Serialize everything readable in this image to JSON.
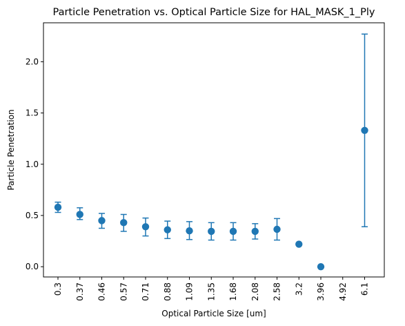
{
  "chart_data": {
    "type": "scatter",
    "title": "Particle Penetration vs. Optical Particle Size for HAL_MASK_1_Ply",
    "xlabel": "Optical Particle Size [um]",
    "ylabel": "Particle Penetration",
    "categories": [
      "0.3",
      "0.37",
      "0.46",
      "0.57",
      "0.71",
      "0.88",
      "1.09",
      "1.35",
      "1.68",
      "2.08",
      "2.58",
      "3.2",
      "3.96",
      "4.92",
      "6.1"
    ],
    "values": [
      0.58,
      0.51,
      0.45,
      0.43,
      0.39,
      0.36,
      0.35,
      0.345,
      0.345,
      0.345,
      0.365,
      0.22,
      0.0,
      null,
      1.33
    ],
    "error_low": [
      0.53,
      0.46,
      0.375,
      0.345,
      0.3,
      0.275,
      0.265,
      0.26,
      0.26,
      0.27,
      0.26,
      null,
      null,
      null,
      0.39
    ],
    "error_high": [
      0.63,
      0.575,
      0.52,
      0.51,
      0.475,
      0.445,
      0.44,
      0.43,
      0.43,
      0.42,
      0.47,
      null,
      null,
      null,
      2.27
    ],
    "yticks": [
      "0.0",
      "0.5",
      "1.0",
      "1.5",
      "2.0"
    ],
    "ylim": [
      -0.1,
      2.38
    ],
    "grid": false,
    "legend": "none",
    "color": "#1f77b4"
  }
}
